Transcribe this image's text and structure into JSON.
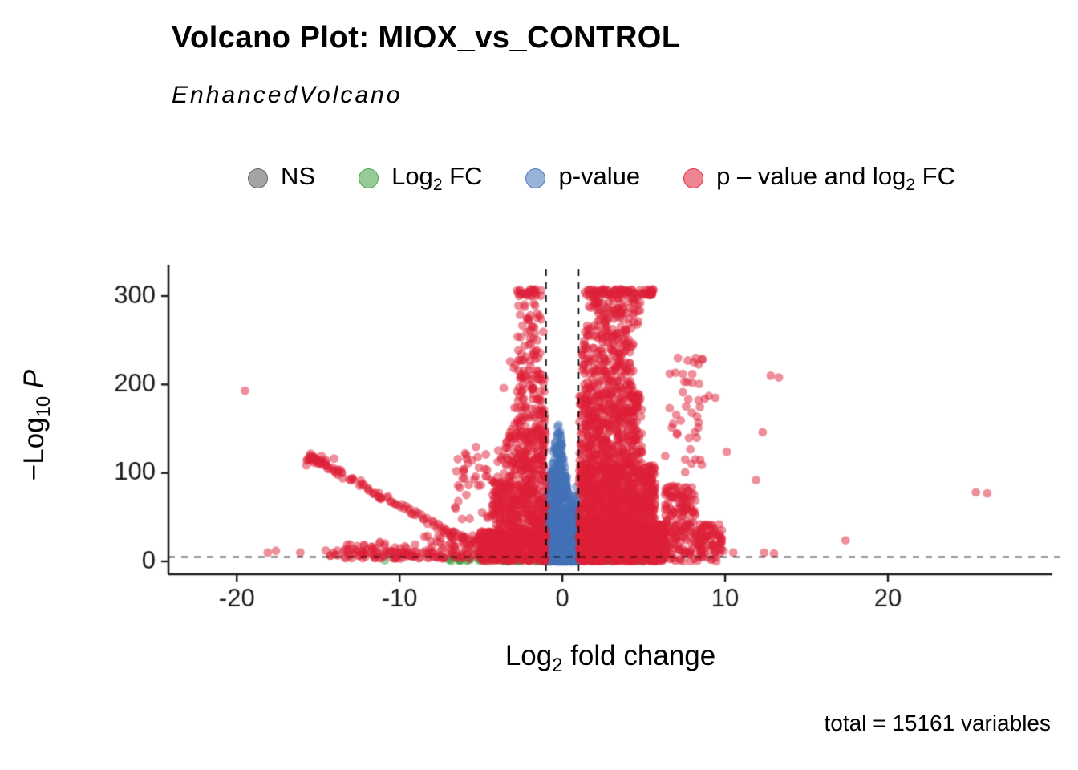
{
  "header": {
    "title": "Volcano Plot: MIOX_vs_CONTROL",
    "subtitle": "EnhancedVolcano"
  },
  "caption": {
    "text": "total = 15161 variables"
  },
  "chart_data": {
    "type": "scatter",
    "title": "Volcano Plot: MIOX_vs_CONTROL",
    "subtitle": "EnhancedVolcano",
    "n_total_variables": 15161,
    "x_label": {
      "pre": "Log",
      "sub": "2",
      "post": " fold change"
    },
    "y_label": {
      "pre": "−Log",
      "sub": "10",
      "italic": " P"
    },
    "axes": {
      "x_domain": [
        -24.2,
        30.1
      ],
      "y_domain": [
        -14.5,
        322.7
      ],
      "x_ticks": [
        -20,
        -10,
        0,
        10,
        20
      ],
      "y_ticks": [
        0,
        100,
        200,
        300
      ],
      "grid": false
    },
    "thresholds": {
      "fc_cutoff_lines_x": [
        -1,
        1
      ],
      "p_cutoff_line_y": 5
    },
    "cap_y": 305,
    "colors": {
      "ns": "#5A5A5A",
      "fc": "#3FA144",
      "p": "#4472B8",
      "p_fc": "#DE2038",
      "point_alpha": 0.5
    },
    "legend": [
      {
        "key": "ns",
        "pre": "NS",
        "sub": "",
        "post": ""
      },
      {
        "key": "fc",
        "pre": "Log",
        "sub": "2",
        "post": " FC"
      },
      {
        "key": "p",
        "pre": "p-value",
        "sub": "",
        "post": ""
      },
      {
        "key": "p_fc",
        "pre": "p – value and log",
        "sub": "2",
        "post": " FC"
      }
    ],
    "point_clusters": [
      {
        "cat": "ns",
        "type": "uniform",
        "n": 260,
        "x": [
          -1.05,
          1.05
        ],
        "y": [
          0,
          4.5
        ]
      },
      {
        "cat": "fc",
        "type": "uniform",
        "n": 60,
        "x": [
          -7.2,
          -1.1
        ],
        "y": [
          0,
          4
        ]
      },
      {
        "cat": "fc",
        "type": "uniform",
        "n": 45,
        "x": [
          1.1,
          5.5
        ],
        "y": [
          0,
          4
        ]
      },
      {
        "cat": "p",
        "type": "spike",
        "n": 850,
        "cx": -0.25,
        "hw": 1.3,
        "maxy": 162,
        "pow": 1.6,
        "xclamp": [
          -1.04,
          1.04
        ]
      },
      {
        "cat": "p",
        "type": "uniform",
        "n": 420,
        "x": [
          -1.03,
          1.03
        ],
        "y": [
          0,
          32
        ]
      },
      {
        "cat": "p",
        "type": "gauss",
        "n": 45,
        "cx": 0.82,
        "cy": 55,
        "sx": 0.14,
        "sy": 13
      },
      {
        "cat": "p_fc",
        "type": "uniform",
        "n": 1500,
        "x": [
          1.02,
          6.3
        ],
        "y": [
          0,
          42
        ]
      },
      {
        "cat": "p_fc",
        "type": "uniform",
        "n": 740,
        "x": [
          1.02,
          5.7
        ],
        "y": [
          42,
          110
        ]
      },
      {
        "cat": "p_fc",
        "type": "uniform",
        "n": 400,
        "x": [
          1.05,
          4.9
        ],
        "y": [
          110,
          190
        ]
      },
      {
        "cat": "p_fc",
        "type": "uniform",
        "n": 190,
        "x": [
          1.2,
          4.4
        ],
        "y": [
          190,
          262
        ]
      },
      {
        "cat": "p_fc",
        "type": "uniform",
        "n": 90,
        "x": [
          1.5,
          4.8
        ],
        "y": [
          262,
          300
        ]
      },
      {
        "cat": "p_fc",
        "type": "uniform",
        "n": 85,
        "x": [
          1.35,
          5.6
        ],
        "y": [
          301,
          308
        ]
      },
      {
        "cat": "p_fc",
        "type": "uniform",
        "n": 170,
        "x": [
          6.3,
          8.2
        ],
        "y": [
          0,
          85
        ]
      },
      {
        "cat": "p_fc",
        "type": "uniform",
        "n": 90,
        "x": [
          8.2,
          9.8
        ],
        "y": [
          0,
          42
        ]
      },
      {
        "cat": "p_fc",
        "type": "uniform",
        "n": 40,
        "x": [
          6.3,
          8.8
        ],
        "y": [
          85,
          235
        ]
      },
      {
        "cat": "p_fc",
        "type": "uniform",
        "n": 520,
        "x": [
          -5.1,
          -1.02
        ],
        "y": [
          0,
          35
        ]
      },
      {
        "cat": "p_fc",
        "type": "uniform",
        "n": 300,
        "x": [
          -4.3,
          -1.02
        ],
        "y": [
          35,
          90
        ]
      },
      {
        "cat": "p_fc",
        "type": "uniform",
        "n": 180,
        "x": [
          -3.5,
          -1.02
        ],
        "y": [
          90,
          150
        ]
      },
      {
        "cat": "p_fc",
        "type": "uniform",
        "n": 90,
        "x": [
          -3.0,
          -1.05
        ],
        "y": [
          150,
          220
        ]
      },
      {
        "cat": "p_fc",
        "type": "uniform",
        "n": 48,
        "x": [
          -2.8,
          -1.1
        ],
        "y": [
          220,
          292
        ]
      },
      {
        "cat": "p_fc",
        "type": "uniform",
        "n": 26,
        "x": [
          -3.0,
          -1.3
        ],
        "y": [
          300,
          308
        ]
      },
      {
        "cat": "p_fc",
        "type": "uniform",
        "n": 50,
        "x": [
          -6.6,
          -3.5
        ],
        "y": [
          45,
          132
        ]
      },
      {
        "cat": "p_fc",
        "type": "line",
        "n": 95,
        "from": [
          -15.6,
          119
        ],
        "to": [
          -6.2,
          26
        ],
        "jx": 0.22,
        "jy": 3.5
      },
      {
        "cat": "p_fc",
        "type": "gauss",
        "n": 16,
        "cx": -15.1,
        "cy": 115,
        "sx": 0.45,
        "sy": 3
      },
      {
        "cat": "p_fc",
        "type": "uniform",
        "n": 135,
        "x": [
          -14.6,
          -4.2
        ],
        "y": [
          3,
          13
        ]
      },
      {
        "cat": "p_fc",
        "type": "uniform",
        "n": 45,
        "x": [
          -8.6,
          -4.6
        ],
        "y": [
          13,
          30
        ]
      },
      {
        "cat": "p_fc",
        "type": "uniform",
        "n": 22,
        "x": [
          -13.6,
          -9.0
        ],
        "y": [
          13,
          22
        ]
      }
    ],
    "outliers": {
      "p_fc": [
        [
          -19.5,
          193
        ],
        [
          -18.1,
          10
        ],
        [
          -17.6,
          12
        ],
        [
          -16.1,
          10
        ],
        [
          -3.2,
          226
        ],
        [
          -2.9,
          222
        ],
        [
          -3.6,
          196
        ],
        [
          -4.7,
          121
        ],
        [
          -5.2,
          118
        ],
        [
          7.1,
          230
        ],
        [
          7.4,
          212
        ],
        [
          8.2,
          230
        ],
        [
          8.6,
          228
        ],
        [
          9.0,
          187
        ],
        [
          9.4,
          185
        ],
        [
          10.1,
          124
        ],
        [
          11.9,
          92
        ],
        [
          12.3,
          146
        ],
        [
          12.8,
          210
        ],
        [
          13.3,
          208
        ],
        [
          12.4,
          10
        ],
        [
          13.0,
          9
        ],
        [
          9.9,
          12
        ],
        [
          10.5,
          10
        ],
        [
          17.4,
          24
        ],
        [
          25.4,
          78
        ],
        [
          26.1,
          77
        ]
      ],
      "fc": [
        [
          -10.9,
          1.2
        ],
        [
          -5.8,
          0.9
        ],
        [
          -6.3,
          1.5
        ]
      ],
      "ns": [],
      "p": []
    }
  }
}
